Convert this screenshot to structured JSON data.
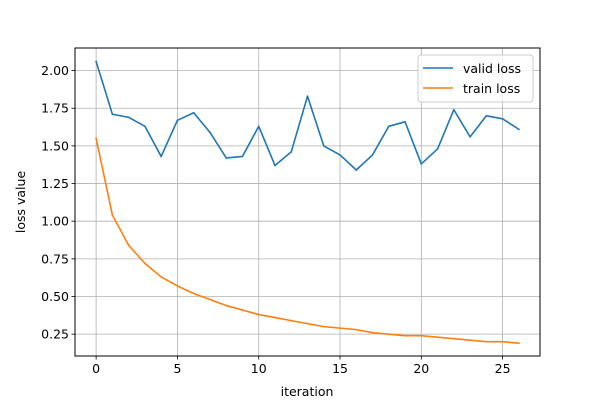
{
  "chart_data": {
    "type": "line",
    "title": "",
    "xlabel": "iteration",
    "ylabel": "loss value",
    "xlim": [
      -1.3,
      27.3
    ],
    "ylim": [
      0.105,
      2.15
    ],
    "x_ticks": [
      0,
      5,
      10,
      15,
      20,
      25
    ],
    "y_ticks": [
      0.25,
      0.5,
      0.75,
      1.0,
      1.25,
      1.5,
      1.75,
      2.0
    ],
    "y_tick_labels": [
      "0.25",
      "0.50",
      "0.75",
      "1.00",
      "1.25",
      "1.50",
      "1.75",
      "2.00"
    ],
    "x_tick_labels": [
      "0",
      "5",
      "10",
      "15",
      "20",
      "25"
    ],
    "grid": true,
    "legend_position": "top-right",
    "x": [
      0,
      1,
      2,
      3,
      4,
      5,
      6,
      7,
      8,
      9,
      10,
      11,
      12,
      13,
      14,
      15,
      16,
      17,
      18,
      19,
      20,
      21,
      22,
      23,
      24,
      25,
      26
    ],
    "series": [
      {
        "name": "valid loss",
        "color": "#1f77b4",
        "values": [
          2.06,
          1.71,
          1.69,
          1.63,
          1.43,
          1.67,
          1.72,
          1.59,
          1.42,
          1.43,
          1.63,
          1.37,
          1.46,
          1.83,
          1.5,
          1.44,
          1.34,
          1.44,
          1.63,
          1.66,
          1.38,
          1.48,
          1.74,
          1.56,
          1.7,
          1.68,
          1.61
        ]
      },
      {
        "name": "train loss",
        "color": "#ff7f0e",
        "values": [
          1.55,
          1.04,
          0.84,
          0.72,
          0.63,
          0.57,
          0.52,
          0.48,
          0.44,
          0.41,
          0.38,
          0.36,
          0.34,
          0.32,
          0.3,
          0.29,
          0.28,
          0.26,
          0.25,
          0.24,
          0.24,
          0.23,
          0.22,
          0.21,
          0.2,
          0.2,
          0.19
        ]
      }
    ]
  }
}
